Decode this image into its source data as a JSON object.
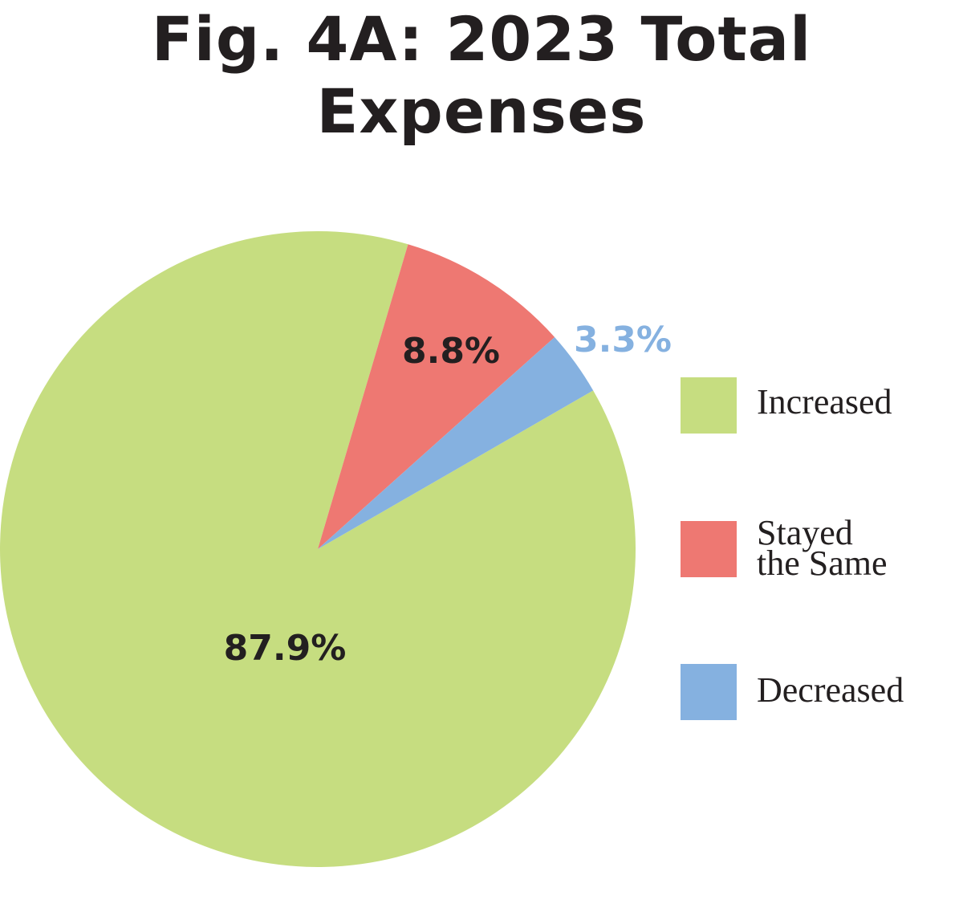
{
  "chart_data": {
    "type": "pie",
    "title": "Fig. 4A: 2023 Total Expenses",
    "slices": [
      {
        "label": "Increased",
        "value": 87.9,
        "display": "87.9%",
        "color": "#c6dd80",
        "label_color": "#231f20"
      },
      {
        "label": "Stayed the Same",
        "value": 8.8,
        "display": "8.8%",
        "color": "#ee7872",
        "label_color": "#231f20"
      },
      {
        "label": "Decreased",
        "value": 3.3,
        "display": "3.3%",
        "color": "#85b1e0",
        "label_color": "#85b1e0"
      }
    ],
    "legend": {
      "placement": "right",
      "entries": [
        {
          "lines": [
            "Increased"
          ],
          "color": "#c6dd80"
        },
        {
          "lines": [
            "Stayed",
            "the Same"
          ],
          "color": "#ee7872"
        },
        {
          "lines": [
            "Decreased"
          ],
          "color": "#85b1e0"
        }
      ]
    }
  }
}
